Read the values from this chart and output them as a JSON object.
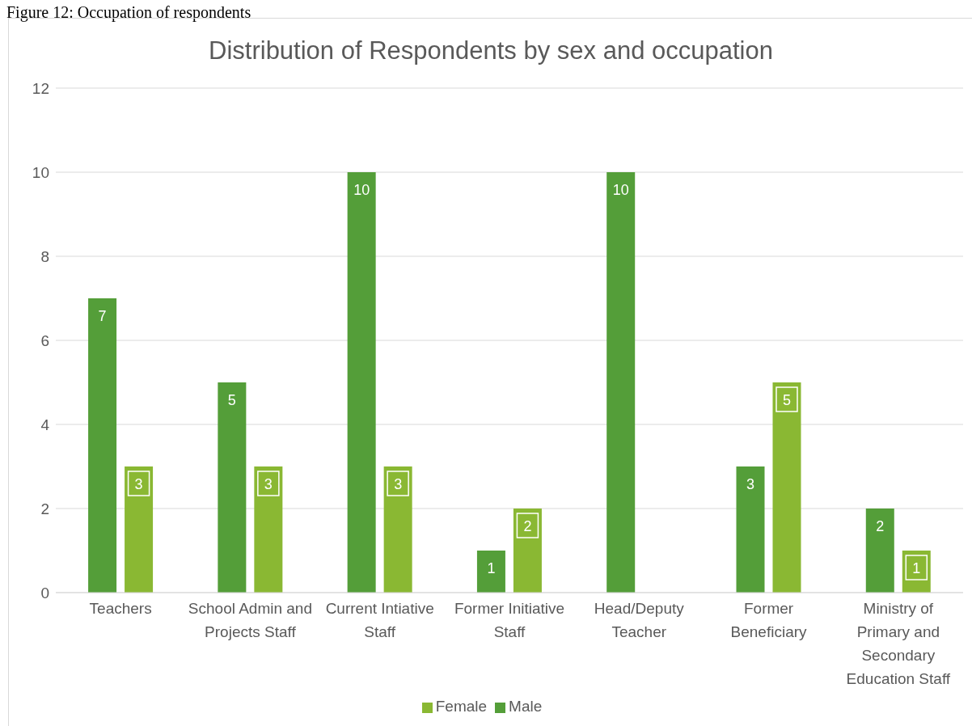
{
  "chart_data": {
    "type": "bar",
    "title": "Distribution of Respondents by sex and occupation",
    "annotations": [
      "Figure 12: Occupation of respondents"
    ],
    "categories": [
      "Teachers",
      "School Admin and Projects Staff",
      "Current Intiative Staff",
      "Former Initiative Staff",
      "Head/Deputy Teacher",
      "Former Beneficiary",
      "Ministry of Primary and Secondary Education Staff"
    ],
    "series": [
      {
        "name": "Male",
        "color": "#549e39",
        "values": [
          7,
          5,
          10,
          1,
          10,
          3,
          2
        ]
      },
      {
        "name": "Female",
        "color": "#8ab833",
        "values": [
          3,
          3,
          3,
          2,
          null,
          5,
          1
        ]
      }
    ],
    "ylim": [
      0,
      12
    ],
    "yticks": [
      0,
      2,
      4,
      6,
      8,
      10,
      12
    ],
    "grid": "y",
    "legend": "bottom",
    "data_labels": true
  }
}
